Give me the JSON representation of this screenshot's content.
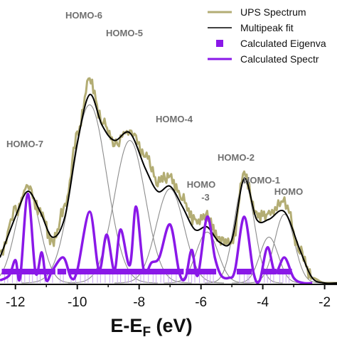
{
  "chart_data": {
    "type": "line",
    "xlabel": "E-E",
    "xlabel_subscript": "F",
    "xlabel_unit": " (eV)",
    "xlim": [
      -12.5,
      -1.6
    ],
    "ylim": [
      0,
      1
    ],
    "x_ticks": [
      -12,
      -10,
      -8,
      -6,
      -4,
      -2
    ],
    "x_tick_labels": [
      "-12",
      "-10",
      "-8",
      "-6",
      "-4",
      "-2"
    ],
    "colors": {
      "ups": "#b3ad74",
      "fit": "#000000",
      "components": "#8c8c8c",
      "calculated": "#8a18e8"
    },
    "legend": {
      "placement": "top-right",
      "entries": [
        {
          "label": "UPS Spectrum",
          "marker": "line",
          "color": "#b3ad74"
        },
        {
          "label": "Multipeak fit",
          "marker": "line",
          "color": "#000000"
        },
        {
          "label": "Calculated Eigenva",
          "marker": "square",
          "color": "#8a18e8"
        },
        {
          "label": "Calculated  Spectr",
          "marker": "line",
          "color": "#8a18e8"
        }
      ]
    },
    "peaks": [
      {
        "label": "HOMO-7",
        "label_line2": "",
        "center": -11.6,
        "height": 0.36,
        "sigma": 0.4
      },
      {
        "label": "HOMO-6",
        "label_line2": "",
        "center": -9.6,
        "height": 0.7,
        "sigma": 0.55
      },
      {
        "label": "HOMO-5",
        "label_line2": "",
        "center": -8.3,
        "height": 0.56,
        "sigma": 0.5
      },
      {
        "label": "HOMO-4",
        "label_line2": "",
        "center": -7.0,
        "height": 0.37,
        "sigma": 0.45
      },
      {
        "label": "HOMO",
        "label_line2": "-3",
        "center": -5.8,
        "height": 0.2,
        "sigma": 0.35
      },
      {
        "label": "HOMO-2",
        "label_line2": "",
        "center": -4.6,
        "height": 0.4,
        "sigma": 0.32
      },
      {
        "label": "HOMO-1",
        "label_line2": "",
        "center": -3.8,
        "height": 0.18,
        "sigma": 0.3
      },
      {
        "label": "HOMO",
        "label_line2": "",
        "center": -3.3,
        "height": 0.27,
        "sigma": 0.32
      }
    ],
    "series": [
      {
        "name": "UPS Spectrum",
        "x": [
          -12.5,
          -12.0,
          -11.6,
          -11.2,
          -10.8,
          -10.4,
          -10.0,
          -9.6,
          -9.2,
          -8.8,
          -8.3,
          -7.8,
          -7.4,
          -7.0,
          -6.6,
          -6.2,
          -5.8,
          -5.4,
          -5.0,
          -4.6,
          -4.2,
          -3.8,
          -3.3,
          -2.8,
          -2.4,
          -2.0,
          -1.6
        ],
        "y": [
          0.12,
          0.28,
          0.38,
          0.28,
          0.16,
          0.3,
          0.58,
          0.8,
          0.64,
          0.55,
          0.6,
          0.5,
          0.4,
          0.42,
          0.33,
          0.24,
          0.26,
          0.17,
          0.15,
          0.43,
          0.26,
          0.27,
          0.32,
          0.13,
          0.02,
          0.0,
          0.0
        ]
      },
      {
        "name": "Multipeak fit",
        "x": [
          -12.5,
          -12.0,
          -11.6,
          -11.2,
          -10.8,
          -10.4,
          -10.0,
          -9.6,
          -9.2,
          -8.8,
          -8.3,
          -7.8,
          -7.4,
          -7.0,
          -6.6,
          -6.2,
          -5.8,
          -5.4,
          -5.0,
          -4.6,
          -4.2,
          -3.8,
          -3.3,
          -2.8,
          -2.4,
          -2.0,
          -1.6
        ],
        "y": [
          0.1,
          0.26,
          0.36,
          0.28,
          0.18,
          0.26,
          0.55,
          0.74,
          0.62,
          0.56,
          0.59,
          0.45,
          0.36,
          0.38,
          0.3,
          0.21,
          0.22,
          0.16,
          0.17,
          0.41,
          0.25,
          0.25,
          0.28,
          0.13,
          0.02,
          0.0,
          0.0
        ]
      },
      {
        "name": "Calculated  Spectr",
        "x": [
          -12.5,
          -12.2,
          -12.0,
          -11.85,
          -11.6,
          -11.35,
          -11.15,
          -11.0,
          -10.8,
          -10.45,
          -10.2,
          -10.0,
          -9.6,
          -9.3,
          -9.05,
          -8.8,
          -8.6,
          -8.3,
          -8.1,
          -7.85,
          -7.6,
          -7.35,
          -7.0,
          -6.7,
          -6.5,
          -6.3,
          -6.1,
          -5.8,
          -5.55,
          -5.35,
          -5.1,
          -4.9,
          -4.6,
          -4.3,
          -4.1,
          -3.85,
          -3.6,
          -3.3,
          -3.0,
          -2.7,
          -2.4
        ],
        "y": [
          0.01,
          0.03,
          0.09,
          0.02,
          0.35,
          0.04,
          0.12,
          0.01,
          0.05,
          0.1,
          0.02,
          0.05,
          0.28,
          0.05,
          0.19,
          0.05,
          0.21,
          0.07,
          0.3,
          0.05,
          0.08,
          0.1,
          0.23,
          0.04,
          0.02,
          0.13,
          0.03,
          0.26,
          0.1,
          0.03,
          0.02,
          0.05,
          0.26,
          0.04,
          0.01,
          0.14,
          0.04,
          0.1,
          0.02,
          0.0,
          0.0
        ]
      }
    ],
    "eigenvalues": [
      -12.35,
      -12.25,
      -12.1,
      -11.95,
      -11.8,
      -11.7,
      -11.55,
      -11.45,
      -11.3,
      -11.2,
      -11.05,
      -10.95,
      -10.8,
      -10.55,
      -10.45,
      -10.2,
      -10.05,
      -9.9,
      -9.75,
      -9.65,
      -9.5,
      -9.35,
      -9.25,
      -9.1,
      -8.95,
      -8.85,
      -8.7,
      -8.6,
      -8.45,
      -8.35,
      -8.25,
      -8.1,
      -7.95,
      -7.85,
      -7.7,
      -7.55,
      -7.45,
      -7.3,
      -7.2,
      -7.05,
      -6.95,
      -6.8,
      -6.65,
      -6.4,
      -6.3,
      -6.2,
      -6.05,
      -5.9,
      -5.8,
      -5.7,
      -5.6,
      -4.75,
      -4.6,
      -4.5,
      -4.45,
      -3.95,
      -3.85,
      -3.75,
      -3.65,
      -3.45,
      -3.35,
      -3.25,
      -3.15
    ]
  }
}
